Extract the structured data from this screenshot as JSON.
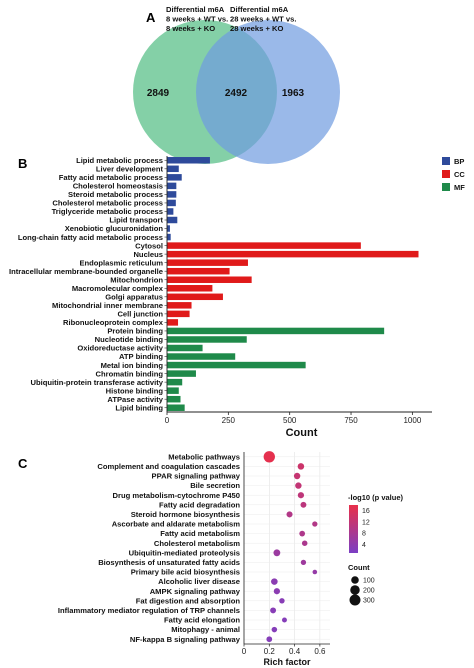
{
  "panels": [
    "A",
    "B",
    "C"
  ],
  "chart_data": [
    {
      "type": "venn",
      "sets": [
        {
          "name": "Differential m6A 8 weeks + WT vs. 8 weeks + KO",
          "lines": [
            "Differential m6A",
            "8 weeks + WT vs.",
            "8 weeks + KO"
          ],
          "color": "#5bc08a"
        },
        {
          "name": "Differential m6A 28 weeks + WT vs. 28 weeks + KO",
          "lines": [
            "Differential m6A",
            "28 weeks + WT vs.",
            "28 weeks + KO"
          ],
          "color": "#6f9be0"
        }
      ],
      "values": {
        "only_left": 2849,
        "overlap": 2492,
        "only_right": 1963
      },
      "labels": {
        "only_left": "2849",
        "overlap": "2492",
        "only_right": "1963"
      }
    },
    {
      "type": "bar",
      "orientation": "horizontal",
      "xlabel": "Count",
      "xlim": [
        0,
        1080
      ],
      "xticks": [
        0,
        250,
        500,
        750,
        1000
      ],
      "xtick_labels": [
        "0",
        "250",
        "500",
        "750",
        "1000"
      ],
      "legend": {
        "placement": "top-right",
        "items": [
          {
            "key": "BP",
            "label": "BP",
            "color": "#2e4a9b"
          },
          {
            "key": "CC",
            "label": "CC",
            "color": "#e01a1a"
          },
          {
            "key": "MF",
            "label": "MF",
            "color": "#1f8a4a"
          }
        ]
      },
      "categories": [
        {
          "label": "Lipid metabolic process",
          "value": 175,
          "group": "BP"
        },
        {
          "label": "Liver development",
          "value": 48,
          "group": "BP"
        },
        {
          "label": "Fatty acid metabolic process",
          "value": 60,
          "group": "BP"
        },
        {
          "label": "Cholesterol homeostasis",
          "value": 38,
          "group": "BP"
        },
        {
          "label": "Steroid metabolic process",
          "value": 38,
          "group": "BP"
        },
        {
          "label": "Cholesterol metabolic process",
          "value": 36,
          "group": "BP"
        },
        {
          "label": "Triglyceride metabolic process",
          "value": 26,
          "group": "BP"
        },
        {
          "label": "Lipid transport",
          "value": 42,
          "group": "BP"
        },
        {
          "label": "Xenobiotic glucuronidation",
          "value": 12,
          "group": "BP"
        },
        {
          "label": "Long-chain fatty acid metabolic process",
          "value": 15,
          "group": "BP"
        },
        {
          "label": "Cytosol",
          "value": 790,
          "group": "CC"
        },
        {
          "label": "Nucleus",
          "value": 1025,
          "group": "CC"
        },
        {
          "label": "Endoplasmic reticulum",
          "value": 330,
          "group": "CC"
        },
        {
          "label": "Intracellular membrane-bounded organelle",
          "value": 255,
          "group": "CC"
        },
        {
          "label": "Mitochondrion",
          "value": 345,
          "group": "CC"
        },
        {
          "label": "Macromolecular complex",
          "value": 185,
          "group": "CC"
        },
        {
          "label": "Golgi apparatus",
          "value": 228,
          "group": "CC"
        },
        {
          "label": "Mitochondrial inner membrane",
          "value": 100,
          "group": "CC"
        },
        {
          "label": "Cell junction",
          "value": 92,
          "group": "CC"
        },
        {
          "label": "Ribonucleoprotein complex",
          "value": 45,
          "group": "CC"
        },
        {
          "label": "Protein binding",
          "value": 885,
          "group": "MF"
        },
        {
          "label": "Nucleotide binding",
          "value": 325,
          "group": "MF"
        },
        {
          "label": "Oxidoreductase activity",
          "value": 145,
          "group": "MF"
        },
        {
          "label": "ATP binding",
          "value": 278,
          "group": "MF"
        },
        {
          "label": "Metal ion binding",
          "value": 565,
          "group": "MF"
        },
        {
          "label": "Chromatin binding",
          "value": 118,
          "group": "MF"
        },
        {
          "label": "Ubiquitin-protein transferase activity",
          "value": 62,
          "group": "MF"
        },
        {
          "label": "Histone binding",
          "value": 48,
          "group": "MF"
        },
        {
          "label": "ATPase activity",
          "value": 55,
          "group": "MF"
        },
        {
          "label": "Lipid binding",
          "value": 72,
          "group": "MF"
        }
      ]
    },
    {
      "type": "scatter",
      "xlabel": "Rich factor",
      "xlim": [
        0,
        0.68
      ],
      "xticks": [
        0,
        0.2,
        0.4,
        0.6
      ],
      "xtick_labels": [
        "0",
        "0.2",
        "0.4",
        "0.6"
      ],
      "grid": true,
      "color_legend": {
        "title": "-log10 (p value)",
        "ticks": [
          16,
          12,
          8,
          4
        ],
        "range": [
          1,
          18
        ],
        "low_color": "#7b3fc4",
        "high_color": "#e8304a"
      },
      "size_legend": {
        "title": "Count",
        "values": [
          100,
          200,
          300
        ],
        "labels": [
          "100",
          "200",
          "300"
        ]
      },
      "points": [
        {
          "label": "Metabolic pathways",
          "rich_factor": 0.2,
          "neg_log10_p": 17.5,
          "count": 330
        },
        {
          "label": "Complement and coagulation cascades",
          "rich_factor": 0.45,
          "neg_log10_p": 13.5,
          "count": 60
        },
        {
          "label": "PPAR signaling pathway",
          "rich_factor": 0.42,
          "neg_log10_p": 12.5,
          "count": 55
        },
        {
          "label": "Bile secretion",
          "rich_factor": 0.43,
          "neg_log10_p": 12.0,
          "count": 55
        },
        {
          "label": "Drug metabolism-cytochrome P450",
          "rich_factor": 0.45,
          "neg_log10_p": 11.5,
          "count": 50
        },
        {
          "label": "Fatty acid degradation",
          "rich_factor": 0.47,
          "neg_log10_p": 11.0,
          "count": 40
        },
        {
          "label": "Steroid hormone biosynthesis",
          "rich_factor": 0.36,
          "neg_log10_p": 9.5,
          "count": 45
        },
        {
          "label": "Ascorbate and aldarate metabolism",
          "rich_factor": 0.56,
          "neg_log10_p": 9.5,
          "count": 25
        },
        {
          "label": "Fatty acid metabolism",
          "rich_factor": 0.46,
          "neg_log10_p": 9.0,
          "count": 35
        },
        {
          "label": "Cholesterol metabolism",
          "rich_factor": 0.48,
          "neg_log10_p": 8.5,
          "count": 30
        },
        {
          "label": "Ubiquitin-mediated proteolysis",
          "rich_factor": 0.26,
          "neg_log10_p": 6.0,
          "count": 70
        },
        {
          "label": "Biosynthesis of unsaturated fatty acids",
          "rich_factor": 0.47,
          "neg_log10_p": 6.5,
          "count": 25
        },
        {
          "label": "Primary bile acid biosynthesis",
          "rich_factor": 0.56,
          "neg_log10_p": 5.0,
          "count": 12
        },
        {
          "label": "Alcoholic liver disease",
          "rich_factor": 0.24,
          "neg_log10_p": 3.5,
          "count": 60
        },
        {
          "label": "AMPK signaling pathway",
          "rich_factor": 0.26,
          "neg_log10_p": 3.5,
          "count": 50
        },
        {
          "label": "Fat digestion and absorption",
          "rich_factor": 0.3,
          "neg_log10_p": 3.0,
          "count": 28
        },
        {
          "label": "Inflammatory mediator regulation of TRP channels",
          "rich_factor": 0.23,
          "neg_log10_p": 3.0,
          "count": 40
        },
        {
          "label": "Fatty acid elongation",
          "rich_factor": 0.32,
          "neg_log10_p": 2.5,
          "count": 18
        },
        {
          "label": "Mitophagy - animal",
          "rich_factor": 0.24,
          "neg_log10_p": 2.5,
          "count": 30
        },
        {
          "label": "NF-kappa B signaling pathway",
          "rich_factor": 0.2,
          "neg_log10_p": 2.5,
          "count": 35
        }
      ]
    }
  ]
}
